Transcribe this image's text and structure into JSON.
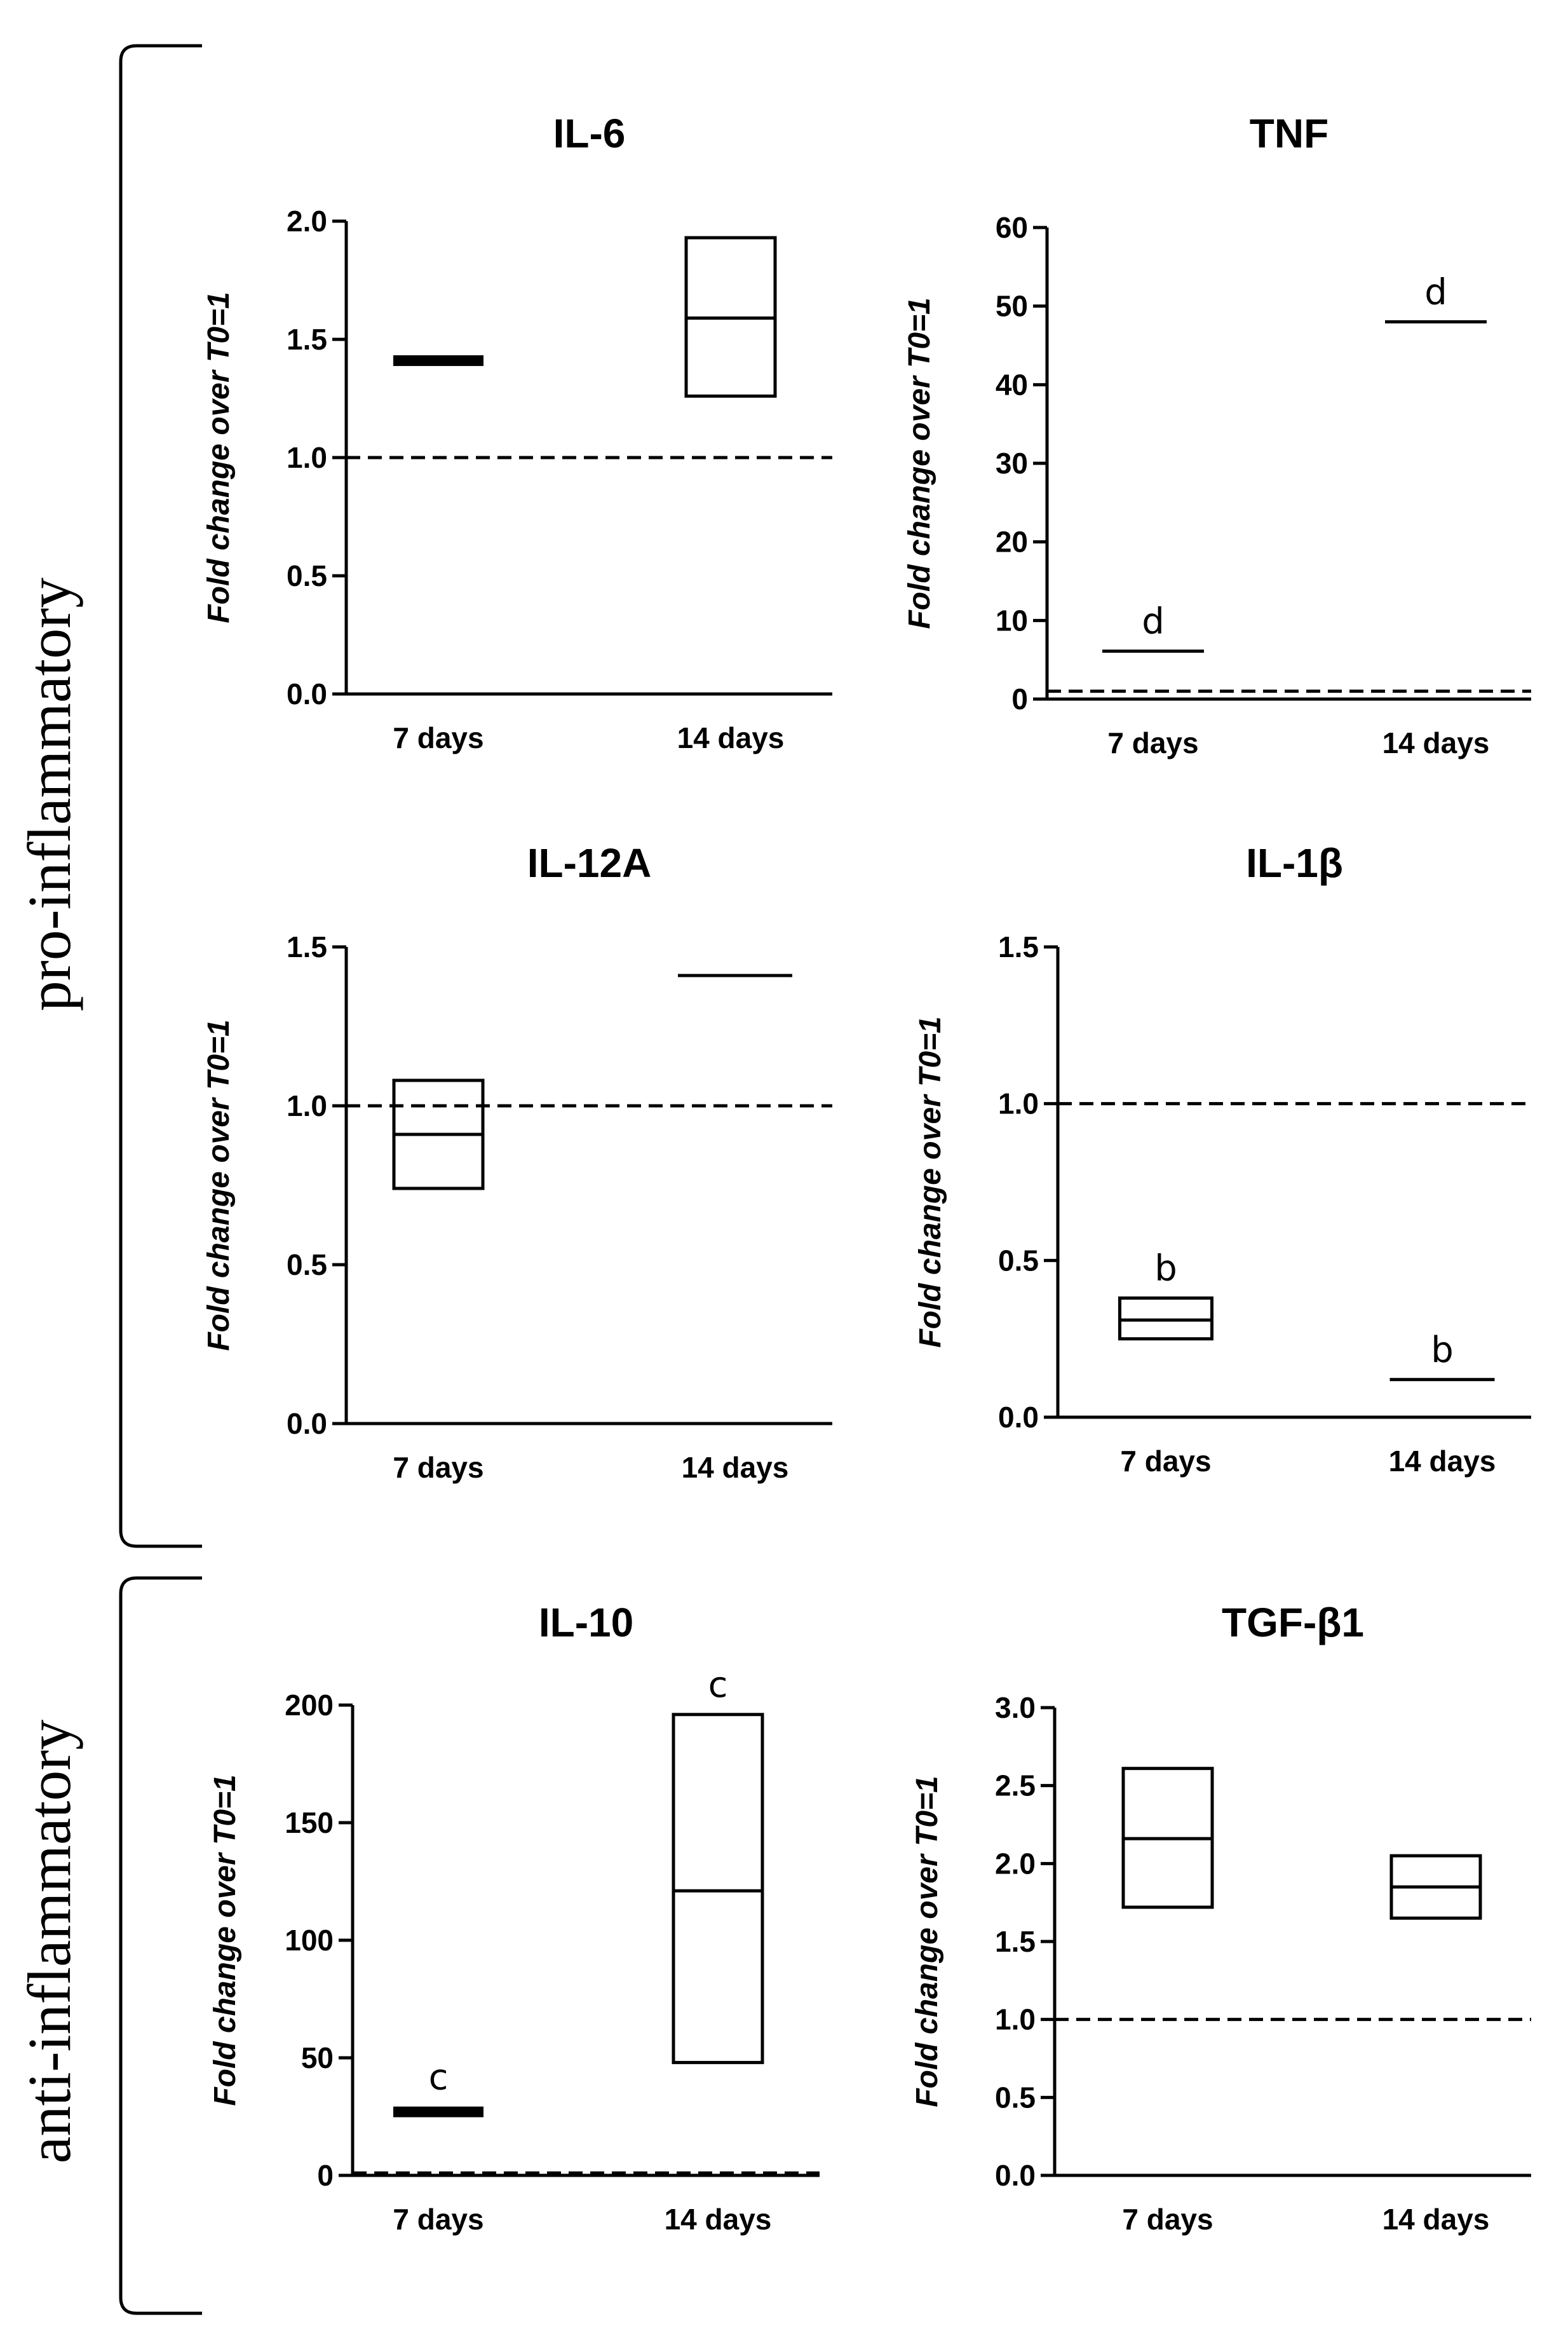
{
  "groups": [
    {
      "label": "pro-inflammatory"
    },
    {
      "label": "anti-inflammatory"
    }
  ],
  "chart_data": [
    {
      "type": "floating-bar",
      "title": "IL-6",
      "ylabel": "Fold change over T0=1",
      "categories": [
        "7 days",
        "14 days"
      ],
      "ylim": [
        0,
        2.0
      ],
      "yticks": [
        0.0,
        0.5,
        1.0,
        1.5,
        2.0
      ],
      "tickLabels": [
        "0.0",
        "0.5",
        "1.0",
        "1.5",
        "2.0"
      ],
      "reference_line": 1.0,
      "bars": [
        {
          "min": 1.39,
          "max": 1.43,
          "mean": 1.41,
          "annotation": ""
        },
        {
          "min": 1.26,
          "max": 1.93,
          "mean": 1.59,
          "annotation": ""
        }
      ]
    },
    {
      "type": "floating-bar",
      "title": "TNF",
      "ylabel": "Fold change over T0=1",
      "categories": [
        "7 days",
        "14 days"
      ],
      "ylim": [
        0,
        60
      ],
      "yticks": [
        0,
        10,
        20,
        30,
        40,
        50,
        60
      ],
      "tickLabels": [
        "0",
        "10",
        "20",
        "30",
        "40",
        "50",
        "60"
      ],
      "reference_line": 1.0,
      "bars": [
        {
          "min": 6.1,
          "max": 6.1,
          "mean": 6.1,
          "annotation": "d"
        },
        {
          "min": 48.0,
          "max": 48.0,
          "mean": 48.0,
          "annotation": "d"
        }
      ]
    },
    {
      "type": "floating-bar",
      "title": "IL-12A",
      "ylabel": "Fold change over T0=1",
      "categories": [
        "7 days",
        "14 days"
      ],
      "ylim": [
        0,
        1.5
      ],
      "yticks": [
        0.0,
        0.5,
        1.0,
        1.5
      ],
      "tickLabels": [
        "0.0",
        "0.5",
        "1.0",
        "1.5"
      ],
      "reference_line": 1.0,
      "bars": [
        {
          "min": 0.74,
          "max": 1.08,
          "mean": 0.91,
          "annotation": ""
        },
        {
          "min": 1.41,
          "max": 1.41,
          "mean": 1.41,
          "annotation": ""
        }
      ]
    },
    {
      "type": "floating-bar",
      "title": "IL-1β",
      "ylabel": "Fold change over T0=1",
      "categories": [
        "7 days",
        "14 days"
      ],
      "ylim": [
        0,
        1.5
      ],
      "yticks": [
        0.0,
        0.5,
        1.0,
        1.5
      ],
      "tickLabels": [
        "0.0",
        "0.5",
        "1.0",
        "1.5"
      ],
      "reference_line": 1.0,
      "bars": [
        {
          "min": 0.25,
          "max": 0.38,
          "mean": 0.31,
          "annotation": "b"
        },
        {
          "min": 0.12,
          "max": 0.12,
          "mean": 0.12,
          "annotation": "b"
        }
      ]
    },
    {
      "type": "floating-bar",
      "title": "IL-10",
      "ylabel": "Fold change over T0=1",
      "categories": [
        "7 days",
        "14 days"
      ],
      "ylim": [
        0,
        200
      ],
      "yticks": [
        0,
        50,
        100,
        150,
        200
      ],
      "tickLabels": [
        "0",
        "50",
        "100",
        "150",
        "200"
      ],
      "reference_line": 1.0,
      "bars": [
        {
          "min": 25,
          "max": 29,
          "mean": 27,
          "annotation": "c"
        },
        {
          "min": 48,
          "max": 196,
          "mean": 121,
          "annotation": "c"
        }
      ]
    },
    {
      "type": "floating-bar",
      "title": "TGF-β1",
      "ylabel": "Fold change over T0=1",
      "categories": [
        "7 days",
        "14 days"
      ],
      "ylim": [
        0,
        3.0
      ],
      "yticks": [
        0.0,
        0.5,
        1.0,
        1.5,
        2.0,
        2.5,
        3.0
      ],
      "tickLabels": [
        "0.0",
        "0.5",
        "1.0",
        "1.5",
        "2.0",
        "2.5",
        "3.0"
      ],
      "reference_line": 1.0,
      "bars": [
        {
          "min": 1.72,
          "max": 2.61,
          "mean": 2.16,
          "annotation": ""
        },
        {
          "min": 1.65,
          "max": 2.05,
          "mean": 1.85,
          "annotation": ""
        }
      ]
    }
  ]
}
